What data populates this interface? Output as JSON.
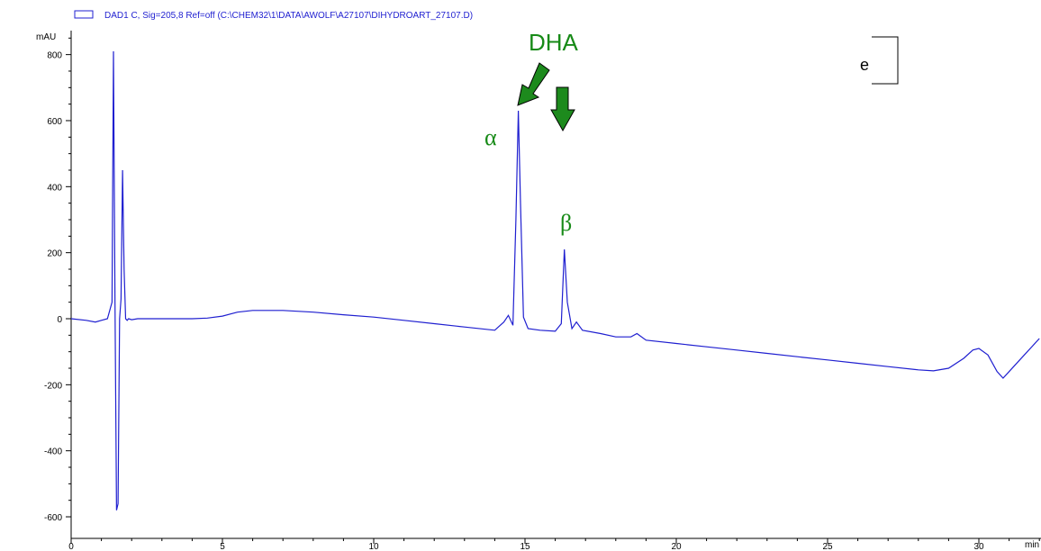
{
  "chart_data": {
    "type": "line",
    "legend": "DAD1 C, Sig=205,8 Ref=off (C:\\CHEM32\\1\\DATA\\AWOLF\\A27107\\DIHYDROART_27107.D)",
    "ylabel": "mAU",
    "xlabel": "min",
    "xlim": [
      0,
      32
    ],
    "ylim": [
      -640,
      860
    ],
    "x_ticks": [
      "0",
      "5",
      "10",
      "15",
      "20",
      "25",
      "30"
    ],
    "y_ticks": [
      "800",
      "600",
      "400",
      "200",
      "0",
      "-200",
      "-400",
      "-600"
    ],
    "series": [
      {
        "color": "#1f1fd0",
        "x": [
          0,
          0.5,
          0.8,
          1.0,
          1.2,
          1.35,
          1.4,
          1.45,
          1.5,
          1.55,
          1.6,
          1.65,
          1.7,
          1.75,
          1.8,
          1.85,
          1.9,
          2.0,
          2.2,
          2.5,
          3.0,
          4.0,
          4.5,
          5.0,
          5.5,
          6.0,
          7.0,
          8.0,
          9.0,
          10.0,
          11.0,
          12.0,
          13.0,
          14.0,
          14.3,
          14.45,
          14.6,
          14.7,
          14.78,
          14.85,
          14.95,
          15.1,
          15.5,
          16.0,
          16.2,
          16.3,
          16.4,
          16.55,
          16.7,
          16.9,
          17.5,
          18.0,
          18.5,
          18.7,
          19.0,
          20.0,
          21.0,
          22.0,
          23.0,
          24.0,
          25.0,
          26.0,
          27.0,
          28.0,
          28.5,
          29.0,
          29.5,
          29.8,
          30.0,
          30.3,
          30.6,
          30.8,
          31.0,
          31.5,
          32.0
        ],
        "y": [
          0,
          -5,
          -10,
          -5,
          0,
          50,
          810,
          50,
          -580,
          -560,
          0,
          60,
          450,
          150,
          0,
          -5,
          0,
          -3,
          0,
          0,
          0,
          0,
          2,
          8,
          20,
          25,
          25,
          20,
          12,
          5,
          -5,
          -15,
          -25,
          -35,
          -10,
          10,
          -20,
          300,
          630,
          350,
          5,
          -30,
          -35,
          -38,
          -15,
          210,
          50,
          -30,
          -10,
          -35,
          -45,
          -55,
          -55,
          -45,
          -65,
          -75,
          -85,
          -95,
          -105,
          -115,
          -125,
          -135,
          -145,
          -155,
          -158,
          -150,
          -120,
          -95,
          -90,
          -110,
          -160,
          -180,
          -160,
          -110,
          -60
        ]
      }
    ],
    "annotations": [
      {
        "text": "DHA",
        "color": "#178a17"
      },
      {
        "text": "α",
        "color": "#178a17"
      },
      {
        "text": "β",
        "color": "#178a17"
      },
      {
        "text": "e",
        "color": "#000000"
      }
    ]
  }
}
